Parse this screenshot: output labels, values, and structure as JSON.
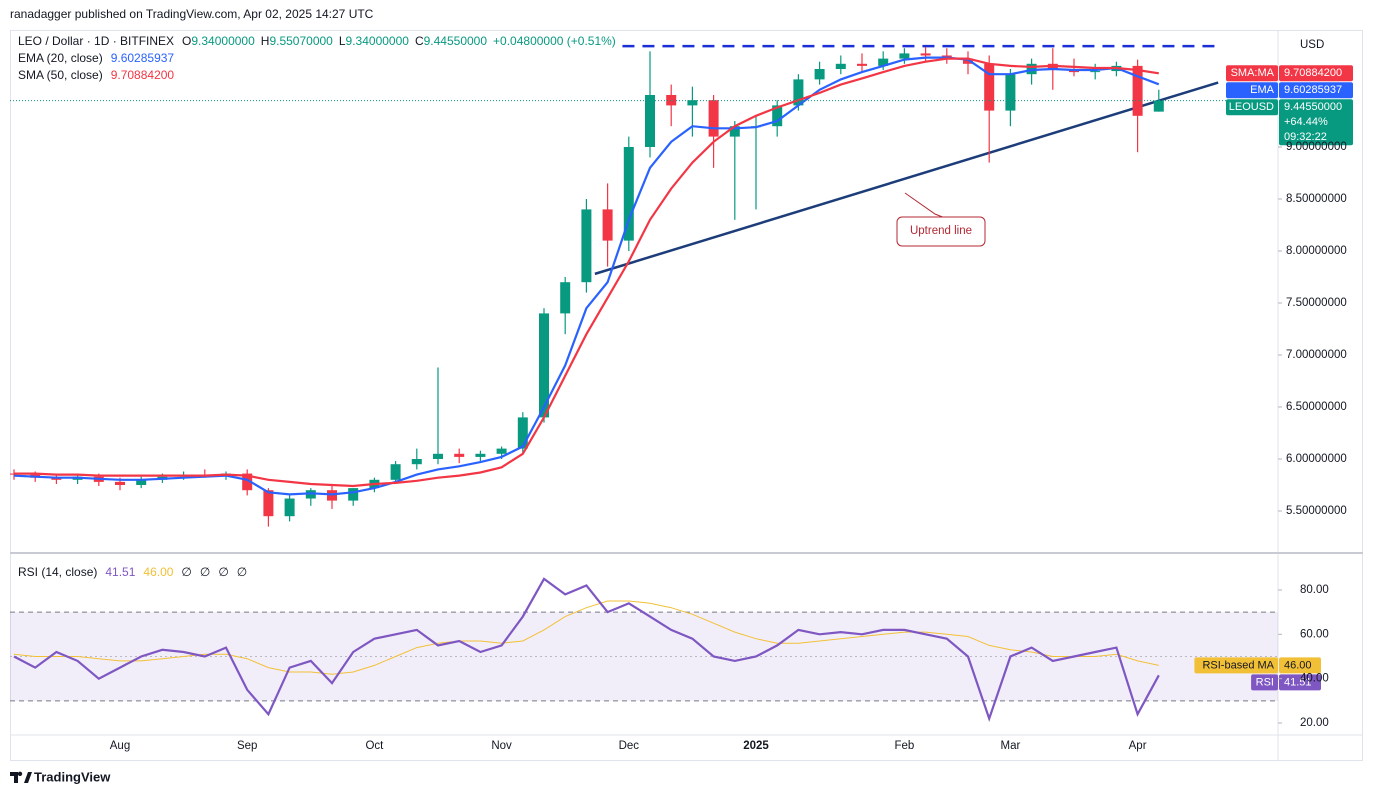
{
  "header": {
    "publisher": "ranadagger published on TradingView.com, Apr 02, 2025 14:27 UTC",
    "symbol": "LEO / Dollar · 1D · BITFINEX",
    "ohlc": [
      {
        "label": "O",
        "value": "9.34000000"
      },
      {
        "label": "H",
        "value": "9.55070000"
      },
      {
        "label": "L",
        "value": "9.34000000"
      },
      {
        "label": "C",
        "value": "9.44550000"
      }
    ],
    "change": "+0.04800000 (+0.51%)",
    "currency": "USD"
  },
  "chart_data": [
    {
      "type": "candlestick",
      "categories": [
        null,
        null,
        null,
        null,
        null,
        "Aug",
        null,
        null,
        null,
        null,
        null,
        "Sep",
        null,
        null,
        null,
        null,
        null,
        "Oct",
        null,
        null,
        null,
        null,
        null,
        "Nov",
        null,
        null,
        null,
        null,
        null,
        "Dec",
        null,
        null,
        null,
        null,
        null,
        "2025",
        null,
        null,
        null,
        null,
        null,
        null,
        "Feb",
        null,
        null,
        null,
        null,
        "Mar",
        null,
        null,
        null,
        null,
        null,
        "Apr",
        null
      ],
      "open": [
        5.86,
        5.85,
        5.82,
        5.8,
        5.83,
        5.78,
        5.75,
        5.8,
        5.83,
        5.85,
        5.84,
        5.86,
        5.7,
        5.45,
        5.62,
        5.7,
        5.6,
        5.72,
        5.8,
        5.95,
        6.0,
        6.05,
        6.02,
        6.05,
        6.1,
        6.4,
        7.4,
        7.7,
        8.4,
        8.1,
        9.0,
        9.5,
        9.4,
        9.45,
        9.1,
        9.2,
        9.2,
        9.4,
        9.65,
        9.75,
        9.8,
        9.78,
        9.85,
        9.9,
        9.88,
        9.85,
        9.8,
        9.35,
        9.7,
        9.8,
        9.75,
        9.72,
        9.73,
        9.78,
        9.34
      ],
      "high": [
        5.9,
        5.88,
        5.85,
        5.86,
        5.86,
        5.82,
        5.83,
        5.86,
        5.88,
        5.9,
        5.88,
        5.9,
        5.72,
        5.65,
        5.72,
        5.74,
        5.72,
        5.82,
        5.98,
        6.1,
        6.88,
        6.1,
        6.08,
        6.12,
        6.45,
        7.45,
        7.75,
        8.5,
        8.65,
        9.1,
        9.92,
        9.6,
        9.58,
        9.5,
        9.25,
        9.3,
        9.45,
        9.7,
        9.82,
        9.88,
        9.9,
        9.92,
        9.95,
        9.96,
        9.95,
        9.92,
        9.88,
        9.75,
        9.85,
        9.95,
        9.85,
        9.8,
        9.82,
        9.84,
        9.5507
      ],
      "low": [
        5.8,
        5.78,
        5.76,
        5.76,
        5.74,
        5.7,
        5.72,
        5.77,
        5.8,
        5.82,
        5.8,
        5.65,
        5.35,
        5.4,
        5.55,
        5.52,
        5.55,
        5.68,
        5.76,
        5.9,
        5.95,
        5.96,
        5.98,
        6.0,
        6.05,
        6.35,
        7.2,
        7.6,
        7.85,
        8.0,
        8.9,
        9.2,
        9.1,
        8.8,
        8.3,
        8.4,
        9.1,
        9.35,
        9.6,
        9.7,
        9.72,
        9.74,
        9.8,
        9.82,
        9.8,
        9.7,
        8.85,
        9.2,
        9.6,
        9.55,
        9.68,
        9.65,
        9.68,
        8.95,
        9.34
      ],
      "close": [
        5.85,
        5.82,
        5.8,
        5.83,
        5.78,
        5.75,
        5.8,
        5.83,
        5.85,
        5.84,
        5.86,
        5.7,
        5.45,
        5.62,
        5.7,
        5.6,
        5.72,
        5.8,
        5.95,
        6.0,
        6.05,
        6.02,
        6.05,
        6.1,
        6.4,
        7.4,
        7.7,
        8.4,
        8.1,
        9.0,
        9.5,
        9.4,
        9.45,
        9.1,
        9.2,
        9.2,
        9.4,
        9.65,
        9.75,
        9.8,
        9.78,
        9.85,
        9.9,
        9.88,
        9.85,
        9.8,
        9.35,
        9.7,
        9.8,
        9.75,
        9.72,
        9.73,
        9.78,
        9.3,
        9.4455
      ],
      "up_color": "#089981",
      "down_color": "#f23645",
      "tag": "LEOUSD",
      "value_label": "9.44550000",
      "change_label": "+64.44%",
      "countdown": "09:32:22",
      "series": [
        {
          "name": "EMA (20, close)",
          "tag": "EMA",
          "color": "#2962ff",
          "value_label": "9.60285937",
          "values": [
            5.84,
            5.83,
            5.82,
            5.82,
            5.81,
            5.8,
            5.8,
            5.81,
            5.82,
            5.83,
            5.84,
            5.8,
            5.68,
            5.66,
            5.67,
            5.66,
            5.68,
            5.72,
            5.78,
            5.85,
            5.9,
            5.93,
            5.97,
            6.02,
            6.12,
            6.5,
            6.9,
            7.45,
            7.7,
            8.3,
            8.8,
            9.05,
            9.2,
            9.18,
            9.18,
            9.19,
            9.25,
            9.4,
            9.55,
            9.65,
            9.72,
            9.78,
            9.84,
            9.86,
            9.86,
            9.84,
            9.7,
            9.7,
            9.74,
            9.75,
            9.74,
            9.74,
            9.76,
            9.68,
            9.60285937
          ]
        },
        {
          "name": "SMA (50, close)",
          "tag": "SMA:MA",
          "color": "#f23645",
          "value_label": "9.70884200",
          "values": [
            5.86,
            5.86,
            5.85,
            5.85,
            5.84,
            5.84,
            5.84,
            5.84,
            5.84,
            5.84,
            5.85,
            5.84,
            5.8,
            5.78,
            5.76,
            5.75,
            5.74,
            5.76,
            5.77,
            5.79,
            5.82,
            5.84,
            5.87,
            5.92,
            6.05,
            6.4,
            6.8,
            7.2,
            7.55,
            7.9,
            8.3,
            8.6,
            8.85,
            9.05,
            9.2,
            9.3,
            9.38,
            9.45,
            9.52,
            9.6,
            9.66,
            9.72,
            9.78,
            9.82,
            9.85,
            9.85,
            9.8,
            9.78,
            9.77,
            9.78,
            9.77,
            9.76,
            9.76,
            9.74,
            9.708842
          ]
        }
      ],
      "ylim": [
        5.125,
        10.125
      ],
      "yticks": [
        {
          "value": 5.5,
          "label": "5.50000000"
        },
        {
          "value": 6,
          "label": "6.00000000"
        },
        {
          "value": 6.5,
          "label": "6.50000000"
        },
        {
          "value": 7,
          "label": "7.00000000"
        },
        {
          "value": 7.5,
          "label": "7.50000000"
        },
        {
          "value": 8,
          "label": "8.00000000"
        },
        {
          "value": 8.5,
          "label": "8.50000000"
        },
        {
          "value": 9,
          "label": "9.00000000"
        }
      ],
      "trendline": {
        "x": [
          27.4,
          56.8
        ],
        "y": [
          7.78,
          9.62
        ],
        "color": "#1c3d7a"
      },
      "resistance": {
        "x": [
          28.7,
          56.8
        ],
        "y": [
          9.97,
          9.97
        ],
        "color": "#1b2fd6"
      },
      "annotation": "Uptrend line"
    },
    {
      "type": "line",
      "title": "RSI (14, close)",
      "legend_extra": [
        "∅",
        "∅",
        "∅",
        "∅"
      ],
      "series": [
        {
          "name": "RSI",
          "color": "#7e57c2",
          "value_label": "41.51",
          "values": [
            50,
            45,
            52,
            48,
            40,
            45,
            50,
            53,
            52,
            50,
            54,
            35,
            24,
            45,
            48,
            38,
            52,
            58,
            60,
            62,
            55,
            57,
            52,
            55,
            68,
            85,
            78,
            82,
            70,
            74,
            68,
            62,
            58,
            50,
            48,
            50,
            55,
            62,
            60,
            61,
            60,
            62,
            62,
            60,
            58,
            50,
            22,
            50,
            54,
            48,
            50,
            52,
            54,
            24,
            41.51
          ]
        },
        {
          "name": "RSI-based MA",
          "color": "#f2c037",
          "value_label": "46.00",
          "values": [
            51,
            50,
            50,
            50,
            49,
            48,
            48,
            49,
            50,
            51,
            51,
            49,
            45,
            43,
            43,
            42,
            43,
            46,
            50,
            54,
            56,
            57,
            57,
            56,
            57,
            62,
            68,
            72,
            75,
            75,
            74,
            72,
            69,
            65,
            61,
            58,
            56,
            56,
            57,
            58,
            59,
            60,
            61,
            61,
            60,
            59,
            55,
            53,
            52,
            50,
            50,
            50,
            51,
            48,
            46
          ]
        }
      ],
      "band": [
        30,
        70
      ],
      "midline": 50,
      "ylim": [
        14.6,
        93.5
      ],
      "yticks": [
        {
          "value": 20,
          "label": "20.00"
        },
        {
          "value": 40,
          "label": "40.00"
        },
        {
          "value": 60,
          "label": "60.00"
        },
        {
          "value": 80,
          "label": "80.00"
        }
      ]
    }
  ],
  "footer": {
    "brand": "TradingView"
  }
}
